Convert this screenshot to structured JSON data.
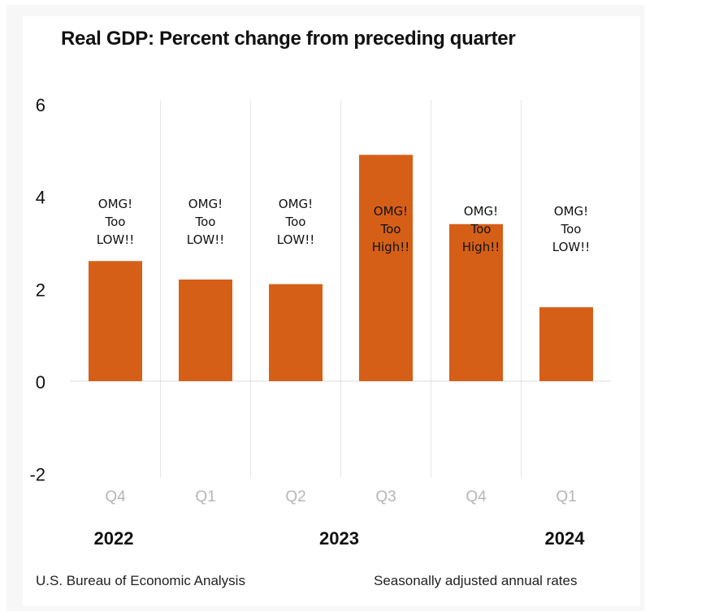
{
  "chart_data": {
    "type": "bar",
    "title": "Real GDP:  Percent change from preceding quarter",
    "xlabel": "",
    "ylabel": "",
    "ylim": [
      -2,
      6
    ],
    "yticks": [
      6,
      4,
      2,
      0,
      -2
    ],
    "grid": "vertical separators",
    "categories": [
      "Q4",
      "Q1",
      "Q2",
      "Q3",
      "Q4",
      "Q1"
    ],
    "years": [
      {
        "label": "2022",
        "under_index": 0
      },
      {
        "label": "2023",
        "under_index": 2.5
      },
      {
        "label": "2024",
        "under_index": 5
      }
    ],
    "values": [
      2.6,
      2.2,
      2.1,
      4.9,
      3.4,
      1.6
    ],
    "annotations": [
      [
        "OMG!",
        "Too",
        "LOW!!"
      ],
      [
        "OMG!",
        "Too",
        "LOW!!"
      ],
      [
        "OMG!",
        "Too",
        "LOW!!"
      ],
      [
        "OMG!",
        "Too",
        "High!!"
      ],
      [
        "OMG!",
        "Too",
        "High!!"
      ],
      [
        "OMG!",
        "Too",
        "LOW!!"
      ]
    ],
    "bar_color": "#D65F18"
  },
  "footer": {
    "source": "U.S. Bureau of Economic Analysis",
    "note": "Seasonally adjusted annual rates"
  }
}
